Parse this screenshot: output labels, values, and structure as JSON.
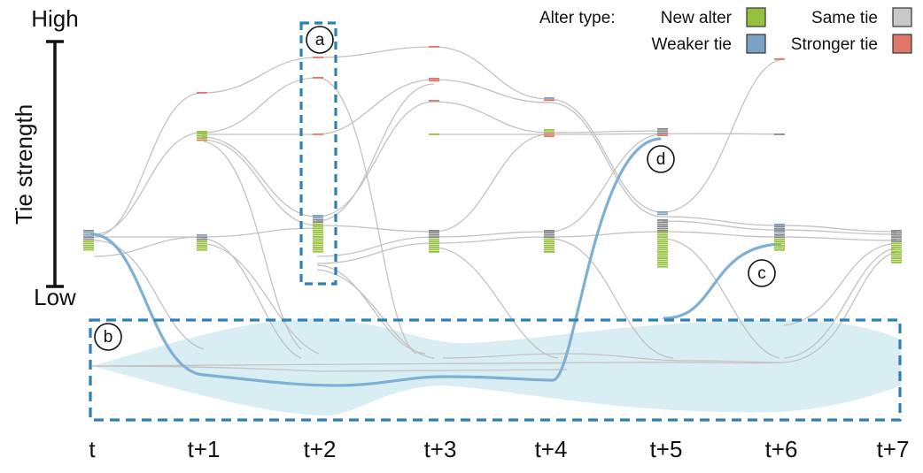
{
  "axis": {
    "title": "Tie strength",
    "high_label": "High",
    "low_label": "Low"
  },
  "time_labels": [
    "t",
    "t+1",
    "t+2",
    "t+3",
    "t+4",
    "t+5",
    "t+6",
    "t+7"
  ],
  "legend": {
    "title": "Alter type:",
    "items": [
      {
        "label": "New alter",
        "color": "#96c13f"
      },
      {
        "label": "Same tie",
        "color": "#c8c8c8"
      },
      {
        "label": "Weaker tie",
        "color": "#7aa2c4"
      },
      {
        "label": "Stronger tie",
        "color": "#e07868"
      }
    ]
  },
  "callouts": {
    "a": "a",
    "b": "b",
    "c": "c",
    "d": "d"
  },
  "colors": {
    "new_alter": "#96c13f",
    "same_tie": "#888888",
    "weaker_tie": "#7aa2c4",
    "stronger_tie": "#e07868",
    "highlight_path": "#7eb0d5",
    "dashed_box": "#2f7fb8",
    "removed_band": "#d9eef3"
  }
}
